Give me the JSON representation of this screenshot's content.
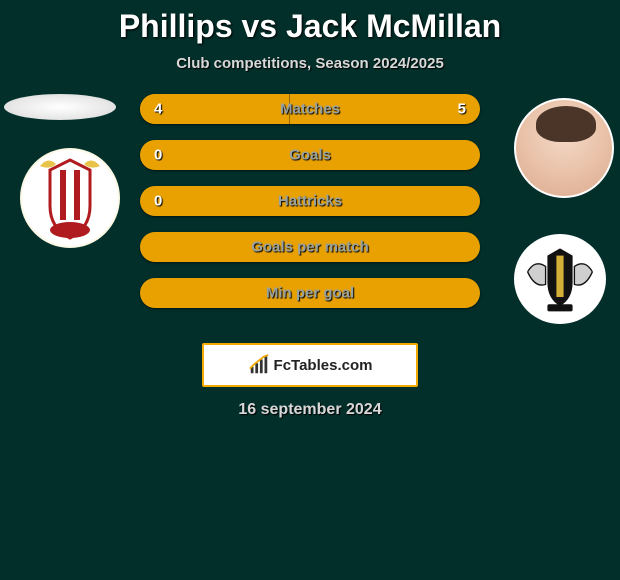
{
  "title": "Phillips vs Jack McMillan",
  "subtitle": "Club competitions, Season 2024/2025",
  "date": "16 september 2024",
  "footer_brand": "FcTables.com",
  "colors": {
    "background": "#022f2a",
    "p1": "#e8a100",
    "p2": "#e8a100"
  },
  "bars": [
    {
      "label": "Matches",
      "left": "4",
      "right": "5",
      "lw": 44,
      "rw": 56,
      "show_left": true,
      "show_right": true
    },
    {
      "label": "Goals",
      "left": "0",
      "right": "",
      "lw": 0,
      "rw": 100,
      "show_left": true,
      "show_right": false
    },
    {
      "label": "Hattricks",
      "left": "0",
      "right": "",
      "lw": 0,
      "rw": 100,
      "show_left": true,
      "show_right": false
    },
    {
      "label": "Goals per match",
      "left": "",
      "right": "",
      "lw": 0,
      "rw": 100,
      "show_left": false,
      "show_right": false
    },
    {
      "label": "Min per goal",
      "left": "",
      "right": "",
      "lw": 0,
      "rw": 100,
      "show_left": false,
      "show_right": false
    }
  ]
}
